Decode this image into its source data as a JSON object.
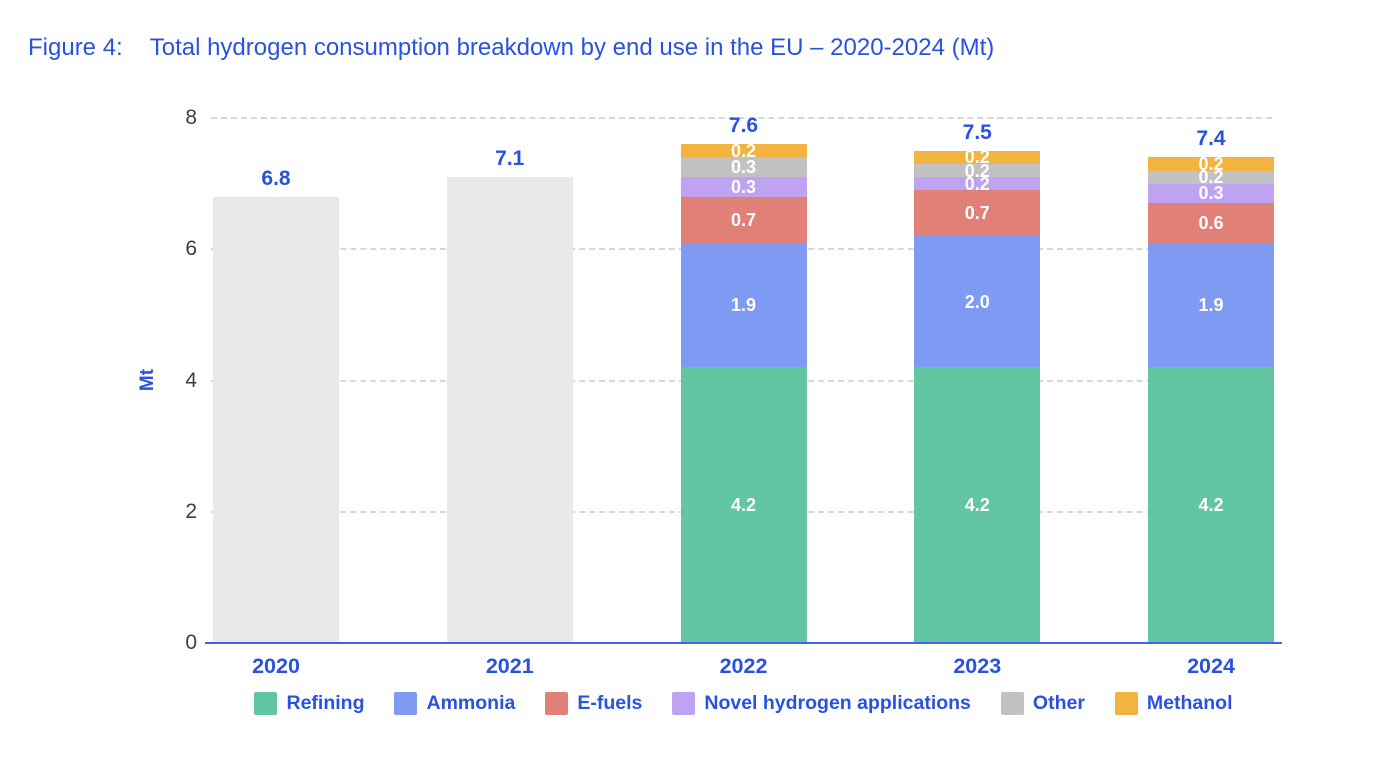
{
  "title": {
    "prefix": "Figure 4:",
    "text": "Total hydrogen consumption breakdown by end use in the EU – 2020-2024 (Mt)"
  },
  "colors": {
    "accent_blue": "#2A52E0",
    "axis_line": "#4566DB",
    "tick_text": "#3F3F3F",
    "gridline": "#D8D8D8",
    "segment_label_text": "#FFFFFF",
    "refining": "#63C6A3",
    "ammonia": "#7E9AF3",
    "efuels": "#E08077",
    "novel": "#C0A2F2",
    "other": "#C2C2C2",
    "methanol": "#F2B43E",
    "total_only_bar": "#E9E9E9"
  },
  "chart_data": {
    "type": "bar",
    "stacked": true,
    "title": "Total hydrogen consumption breakdown by end use in the EU – 2020-2024 (Mt)",
    "xlabel": "",
    "ylabel": "Mt",
    "ylim": [
      0,
      8
    ],
    "yticks": [
      0,
      2,
      4,
      6,
      8
    ],
    "grid": "horizontal-dashed",
    "legend_position": "bottom",
    "categories": [
      "2020",
      "2021",
      "2022",
      "2023",
      "2024"
    ],
    "totals": [
      6.8,
      7.1,
      7.6,
      7.5,
      7.4
    ],
    "bars": [
      {
        "category": "2020",
        "total": 6.8,
        "total_label": "6.8",
        "segments": [
          {
            "series": "total",
            "value": 6.8,
            "color": "#E9E9E9",
            "label": ""
          }
        ]
      },
      {
        "category": "2021",
        "total": 7.1,
        "total_label": "7.1",
        "segments": [
          {
            "series": "total",
            "value": 7.1,
            "color": "#E9E9E9",
            "label": ""
          }
        ]
      },
      {
        "category": "2022",
        "total": 7.6,
        "total_label": "7.6",
        "segments": [
          {
            "series": "Refining",
            "value": 4.2,
            "color": "#63C6A3",
            "label": "4.2"
          },
          {
            "series": "Ammonia",
            "value": 1.9,
            "color": "#7E9AF3",
            "label": "1.9"
          },
          {
            "series": "E-fuels",
            "value": 0.7,
            "color": "#E08077",
            "label": "0.7"
          },
          {
            "series": "Novel hydrogen applications",
            "value": 0.3,
            "color": "#C0A2F2",
            "label": "0.3"
          },
          {
            "series": "Other",
            "value": 0.3,
            "color": "#C2C2C2",
            "label": "0.3"
          },
          {
            "series": "Methanol",
            "value": 0.2,
            "color": "#F2B43E",
            "label": "0.2"
          }
        ]
      },
      {
        "category": "2023",
        "total": 7.5,
        "total_label": "7.5",
        "segments": [
          {
            "series": "Refining",
            "value": 4.2,
            "color": "#63C6A3",
            "label": "4.2"
          },
          {
            "series": "Ammonia",
            "value": 2.0,
            "color": "#7E9AF3",
            "label": "2.0"
          },
          {
            "series": "E-fuels",
            "value": 0.7,
            "color": "#E08077",
            "label": "0.7"
          },
          {
            "series": "Novel hydrogen applications",
            "value": 0.2,
            "color": "#C0A2F2",
            "label": "0.2"
          },
          {
            "series": "Other",
            "value": 0.2,
            "color": "#C2C2C2",
            "label": "0.2"
          },
          {
            "series": "Methanol",
            "value": 0.2,
            "color": "#F2B43E",
            "label": "0.2"
          }
        ]
      },
      {
        "category": "2024",
        "total": 7.4,
        "total_label": "7.4",
        "segments": [
          {
            "series": "Refining",
            "value": 4.2,
            "color": "#63C6A3",
            "label": "4.2"
          },
          {
            "series": "Ammonia",
            "value": 1.9,
            "color": "#7E9AF3",
            "label": "1.9"
          },
          {
            "series": "E-fuels",
            "value": 0.6,
            "color": "#E08077",
            "label": "0.6"
          },
          {
            "series": "Novel hydrogen applications",
            "value": 0.3,
            "color": "#C0A2F2",
            "label": "0.3"
          },
          {
            "series": "Other",
            "value": 0.2,
            "color": "#C2C2C2",
            "label": "0.2"
          },
          {
            "series": "Methanol",
            "value": 0.2,
            "color": "#F2B43E",
            "label": "0.2"
          }
        ]
      }
    ],
    "legend": [
      {
        "label": "Refining",
        "color": "#63C6A3"
      },
      {
        "label": "Ammonia",
        "color": "#7E9AF3"
      },
      {
        "label": "E-fuels",
        "color": "#E08077"
      },
      {
        "label": "Novel hydrogen applications",
        "color": "#C0A2F2"
      },
      {
        "label": "Other",
        "color": "#C2C2C2"
      },
      {
        "label": "Methanol",
        "color": "#F2B43E"
      }
    ]
  }
}
